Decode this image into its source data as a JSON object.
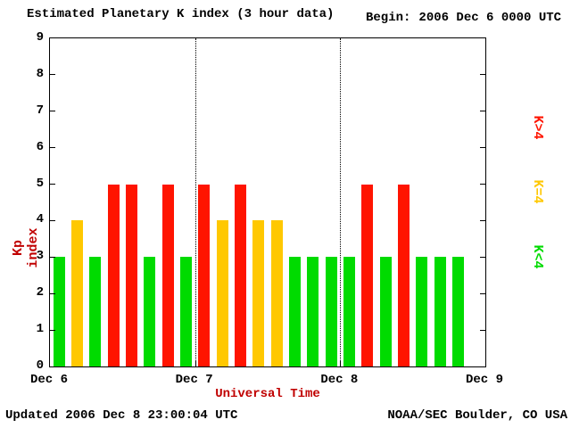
{
  "title": "Estimated Planetary K index (3 hour data)",
  "begin": {
    "label": "Begin:",
    "value": "2006 Dec 6 0000 UTC"
  },
  "footer": {
    "updated": "Updated 2006 Dec 8 23:00:04 UTC",
    "source": "NOAA/SEC Boulder, CO USA"
  },
  "chart_data": {
    "type": "bar",
    "title": "Estimated Planetary K index (3 hour data)",
    "xlabel": "Universal Time",
    "ylabel": "Kp index",
    "ylim": [
      0,
      9
    ],
    "yticks": [
      0,
      1,
      2,
      3,
      4,
      5,
      6,
      7,
      8,
      9
    ],
    "x_day_labels": [
      "Dec 6",
      "Dec 7",
      "Dec 8",
      "Dec 9"
    ],
    "bars_per_day": 8,
    "bar_period_hours": 3,
    "values": [
      3,
      4,
      3,
      5,
      5,
      3,
      5,
      3,
      5,
      4,
      5,
      4,
      4,
      3,
      3,
      3,
      3,
      5,
      3,
      5,
      3,
      3,
      3
    ],
    "color_rule": "green if K<4, yellow if K=4, red if K>4",
    "colors": {
      "low": "#00db00",
      "mid": "#ffc800",
      "high": "#ff1400"
    },
    "legend": [
      {
        "label": "K>4",
        "color": "#ff1400"
      },
      {
        "label": "K=4",
        "color": "#ffc800"
      },
      {
        "label": "K<4",
        "color": "#00db00"
      }
    ],
    "gridlines": "dotted vertical lines at day boundaries (Dec 7, Dec 8)",
    "legend_position": "right, rotated 90deg"
  }
}
